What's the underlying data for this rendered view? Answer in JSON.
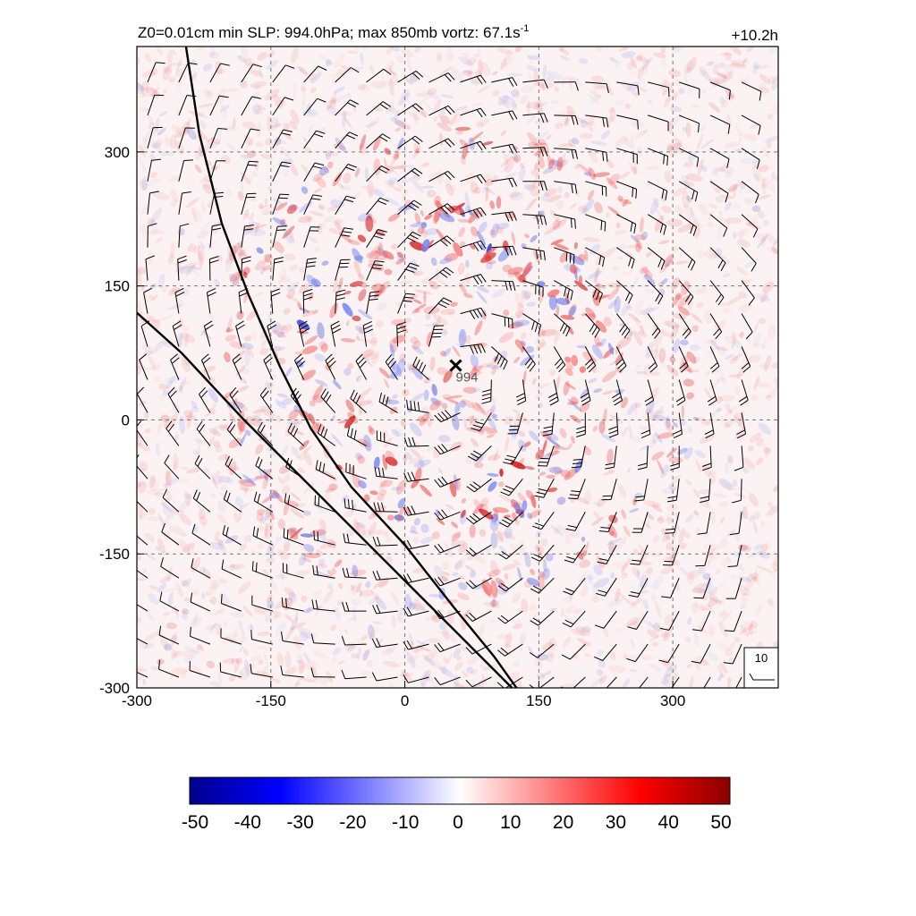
{
  "chart_data": {
    "type": "heatmap",
    "title": "Z0=0.01cm  min SLP: 994.0hPa; max 850mb vortz:  67.1s",
    "title_superscript": "-1",
    "time_label": "+10.2h",
    "field": "850mb relative vorticity (shaded) with wind barbs",
    "x_ticks": [
      -300,
      -150,
      0,
      150,
      300
    ],
    "y_ticks": [
      -300,
      -150,
      0,
      150,
      300
    ],
    "xlim": [
      -300,
      418
    ],
    "ylim": [
      -300,
      418
    ],
    "grid": true,
    "center": {
      "x": 57,
      "y": 61,
      "marker": "x",
      "label": "994"
    },
    "coastlines": [
      [
        [
          -245,
          418
        ],
        [
          -230,
          320
        ],
        [
          -205,
          220
        ],
        [
          -175,
          140
        ],
        [
          -140,
          60
        ],
        [
          -105,
          -10
        ],
        [
          -60,
          -75
        ],
        [
          0,
          -140
        ],
        [
          55,
          -210
        ],
        [
          100,
          -265
        ],
        [
          125,
          -300
        ]
      ],
      [
        [
          -300,
          120
        ],
        [
          -250,
          75
        ],
        [
          -180,
          0
        ],
        [
          -110,
          -70
        ],
        [
          -40,
          -140
        ],
        [
          25,
          -205
        ],
        [
          80,
          -260
        ],
        [
          120,
          -300
        ]
      ]
    ],
    "barb_reference": {
      "label": "10"
    },
    "colorbar": {
      "ticks": [
        -50,
        -40,
        -30,
        -20,
        -10,
        0,
        10,
        20,
        30,
        40,
        50
      ],
      "colors": [
        "#00008b",
        "#0000ff",
        "#7f7fff",
        "#ffffff",
        "#ff7f7f",
        "#ff0000",
        "#8b0000"
      ]
    },
    "vortex_rings": [
      {
        "radius": 75,
        "strength": 0.28
      },
      {
        "radius": 135,
        "strength": 0.5
      },
      {
        "radius": 175,
        "strength": 0.42
      },
      {
        "radius": 255,
        "strength": 0.3
      }
    ]
  }
}
